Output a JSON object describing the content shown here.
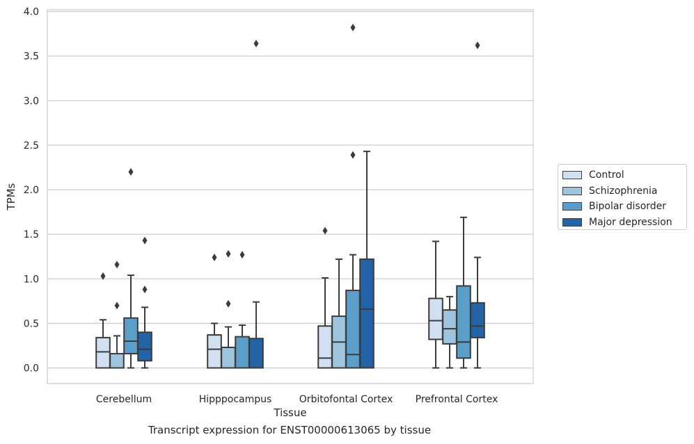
{
  "chart_data": {
    "type": "box",
    "caption": "Transcript expression for ENST00000613065 by tissue",
    "xlabel": "Tissue",
    "ylabel": "TPMs",
    "ylim": [
      -0.18,
      4.02
    ],
    "yticks": [
      "0.0",
      "0.5",
      "1.0",
      "1.5",
      "2.0",
      "2.5",
      "3.0",
      "3.5",
      "4.0"
    ],
    "categories": [
      "Cerebellum",
      "Hipppocampus",
      "Orbitofontal Cortex",
      "Prefrontal Cortex"
    ],
    "grid": true,
    "legend_position": "right",
    "series": [
      {
        "name": "Control",
        "color": "#d0e0f1",
        "boxes": [
          {
            "whislo": 0.0,
            "q1": 0.0,
            "med": 0.18,
            "q3": 0.34,
            "whishi": 0.54,
            "fliers": [
              1.03
            ]
          },
          {
            "whislo": 0.0,
            "q1": 0.0,
            "med": 0.21,
            "q3": 0.37,
            "whishi": 0.5,
            "fliers": [
              1.24
            ]
          },
          {
            "whislo": 0.0,
            "q1": 0.0,
            "med": 0.11,
            "q3": 0.47,
            "whishi": 1.01,
            "fliers": [
              1.54
            ]
          },
          {
            "whislo": 0.0,
            "q1": 0.32,
            "med": 0.53,
            "q3": 0.78,
            "whishi": 1.42,
            "fliers": []
          }
        ]
      },
      {
        "name": "Schizophrenia",
        "color": "#9dc5de",
        "boxes": [
          {
            "whislo": 0.0,
            "q1": 0.0,
            "med": 0.0,
            "q3": 0.16,
            "whishi": 0.36,
            "fliers": [
              0.7,
              1.16
            ]
          },
          {
            "whislo": 0.0,
            "q1": 0.0,
            "med": 0.0,
            "q3": 0.23,
            "whishi": 0.46,
            "fliers": [
              0.72,
              1.28
            ]
          },
          {
            "whislo": 0.0,
            "q1": 0.0,
            "med": 0.29,
            "q3": 0.58,
            "whishi": 1.22,
            "fliers": []
          },
          {
            "whislo": 0.0,
            "q1": 0.27,
            "med": 0.44,
            "q3": 0.65,
            "whishi": 0.8,
            "fliers": []
          }
        ]
      },
      {
        "name": "Bipolar disorder",
        "color": "#5a9ec9",
        "boxes": [
          {
            "whislo": 0.0,
            "q1": 0.16,
            "med": 0.3,
            "q3": 0.56,
            "whishi": 1.04,
            "fliers": [
              2.2
            ]
          },
          {
            "whislo": 0.0,
            "q1": 0.0,
            "med": 0.0,
            "q3": 0.35,
            "whishi": 0.48,
            "fliers": [
              1.27
            ]
          },
          {
            "whislo": 0.0,
            "q1": 0.0,
            "med": 0.15,
            "q3": 0.87,
            "whishi": 1.27,
            "fliers": [
              2.39,
              3.82
            ]
          },
          {
            "whislo": 0.0,
            "q1": 0.11,
            "med": 0.29,
            "q3": 0.92,
            "whishi": 1.69,
            "fliers": []
          }
        ]
      },
      {
        "name": "Major depression",
        "color": "#2463a6",
        "boxes": [
          {
            "whislo": 0.0,
            "q1": 0.08,
            "med": 0.21,
            "q3": 0.4,
            "whishi": 0.68,
            "fliers": [
              0.88,
              1.43
            ]
          },
          {
            "whislo": 0.0,
            "q1": 0.0,
            "med": 0.0,
            "q3": 0.33,
            "whishi": 0.74,
            "fliers": [
              3.64
            ]
          },
          {
            "whislo": 0.0,
            "q1": 0.0,
            "med": 0.66,
            "q3": 1.22,
            "whishi": 2.43,
            "fliers": []
          },
          {
            "whislo": 0.0,
            "q1": 0.34,
            "med": 0.47,
            "q3": 0.73,
            "whishi": 1.24,
            "fliers": [
              3.62
            ]
          }
        ]
      }
    ]
  }
}
